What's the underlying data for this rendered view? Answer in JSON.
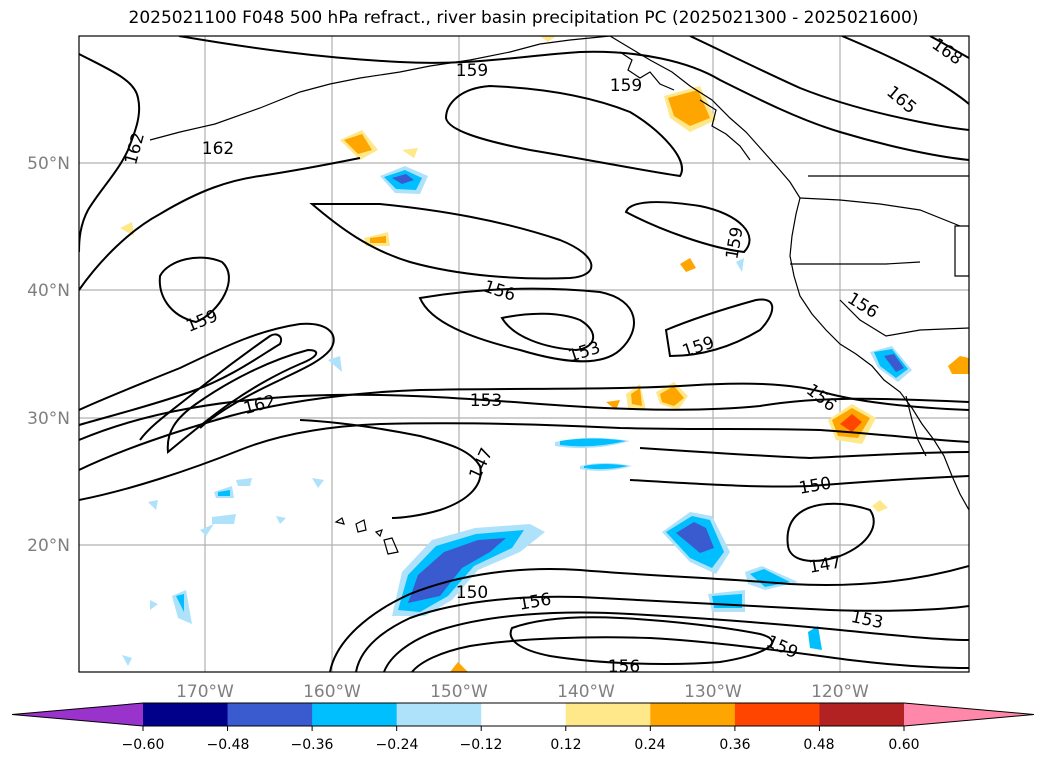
{
  "title": "2025021100 F048 500 hPa refract., river basin precipitation PC (2025021300 - 2025021600)",
  "axes": {
    "lat_labels": [
      "50°N",
      "40°N",
      "30°N",
      "20°N"
    ],
    "lon_labels": [
      "170°W",
      "160°W",
      "150°W",
      "140°W",
      "130°W",
      "120°W"
    ]
  },
  "contour_labels": [
    "159",
    "159",
    "162",
    "162",
    "165",
    "168",
    "159",
    "156",
    "153",
    "159",
    "156",
    "159",
    "162",
    "153",
    "147",
    "156",
    "150",
    "147",
    "150",
    "156",
    "153",
    "159",
    "156"
  ],
  "colorbar": {
    "tick_labels": [
      "−0.60",
      "−0.48",
      "−0.36",
      "−0.24",
      "−0.12",
      "0.12",
      "0.24",
      "0.36",
      "0.48",
      "0.60"
    ],
    "colors": [
      "#9933cc",
      "#00008b",
      "#3a5bd0",
      "#00bfff",
      "#aee2fb",
      "#ffffff",
      "#ffe88a",
      "#ffa500",
      "#ff4500",
      "#b22222",
      "#ff88aa"
    ]
  }
}
